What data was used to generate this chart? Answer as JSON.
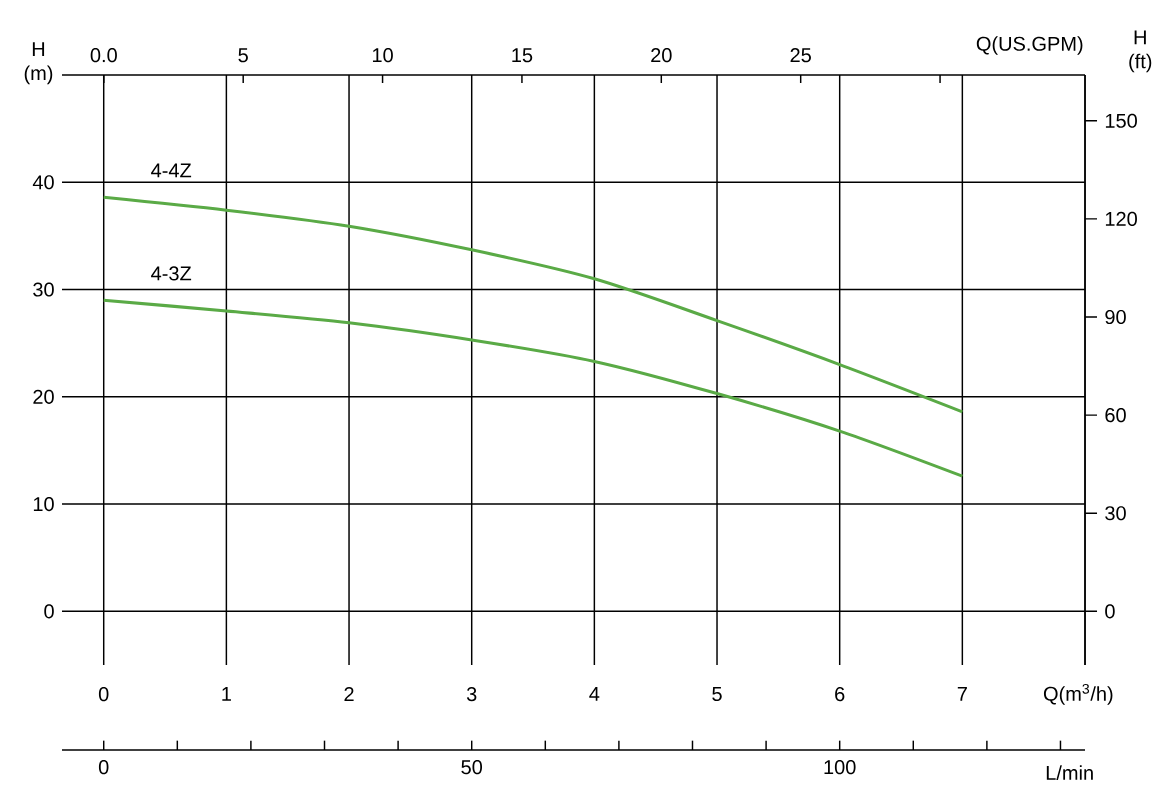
{
  "chart_data": {
    "type": "line",
    "xlabel": "Q(m$^{3}$/h)",
    "ylabel": "H (m)",
    "x2label": "Q(US.GPM)",
    "y2label": "H (ft)",
    "annotations": [
      "0",
      "50",
      "100",
      "L/min"
    ],
    "x": [
      0,
      1,
      2,
      3,
      4,
      5,
      6,
      7
    ],
    "series": [
      {
        "name": "4-4Z",
        "color": "#5aaa46",
        "values": [
          38.6,
          37.4,
          35.9,
          33.7,
          31.0,
          27.1,
          23.0,
          18.6
        ]
      },
      {
        "name": "4-3Z",
        "color": "#5aaa46",
        "values": [
          29.0,
          28.0,
          26.9,
          25.3,
          23.3,
          20.3,
          16.8,
          12.6
        ]
      }
    ],
    "xlim": [
      -0.34,
      8
    ],
    "xticks": [
      0,
      1,
      2,
      3,
      4,
      5,
      6,
      7,
      {
        "value": 8,
        "label": null
      }
    ],
    "ylim": [
      -5,
      50
    ],
    "yticks": [
      0,
      10,
      20,
      30,
      40
    ],
    "x2lim": [
      -1.5,
      35.2
    ],
    "x2ticks": [
      {
        "value": 0,
        "label": "0.0"
      },
      5,
      10,
      15,
      20,
      25,
      {
        "value": 30,
        "label": null
      }
    ],
    "y2lim": [
      -16.4,
      164
    ],
    "y2ticks": [
      0,
      30,
      60,
      90,
      120,
      150
    ],
    "grid": true
  }
}
